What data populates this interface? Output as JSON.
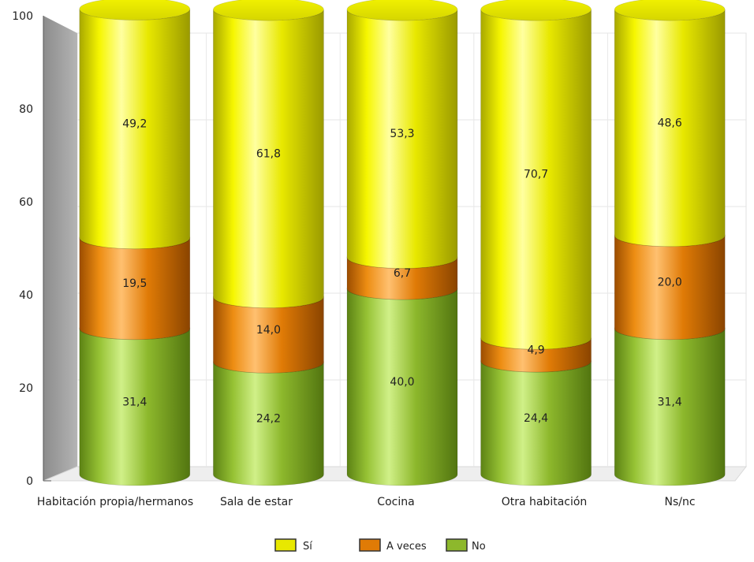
{
  "chart_data": {
    "type": "bar",
    "stacked": true,
    "style": "3d-cylinder",
    "title": "",
    "xlabel": "",
    "ylabel": "",
    "ylim": [
      0,
      100
    ],
    "yticks": [
      "0",
      "20",
      "40",
      "60",
      "80",
      "100"
    ],
    "grid": true,
    "legend_position": "bottom",
    "categories": [
      "Habitación propia/hermanos",
      "Sala de estar",
      "Cocina",
      "Otra habitación",
      "Ns/nc"
    ],
    "series": [
      {
        "name": "No",
        "color": "#8db82c",
        "values": [
          31.4,
          24.2,
          40.0,
          24.4,
          31.4
        ],
        "labels": [
          "31,4",
          "24,2",
          "40,0",
          "24,4",
          "31,4"
        ]
      },
      {
        "name": "A veces",
        "color": "#e07b06",
        "values": [
          19.5,
          14.0,
          6.7,
          4.9,
          20.0
        ],
        "labels": [
          "19,5",
          "14,0",
          "6,7",
          "4,9",
          "20,0"
        ]
      },
      {
        "name": "Sí",
        "color": "#e8e800",
        "values": [
          49.2,
          61.8,
          53.3,
          70.7,
          48.6
        ],
        "labels": [
          "49,2",
          "61,8",
          "53,3",
          "70,7",
          "48,6"
        ]
      }
    ],
    "legend": [
      {
        "label": "Sí",
        "color": "#e8e800"
      },
      {
        "label": "A veces",
        "color": "#e07b06"
      },
      {
        "label": "No",
        "color": "#8db82c"
      }
    ]
  }
}
